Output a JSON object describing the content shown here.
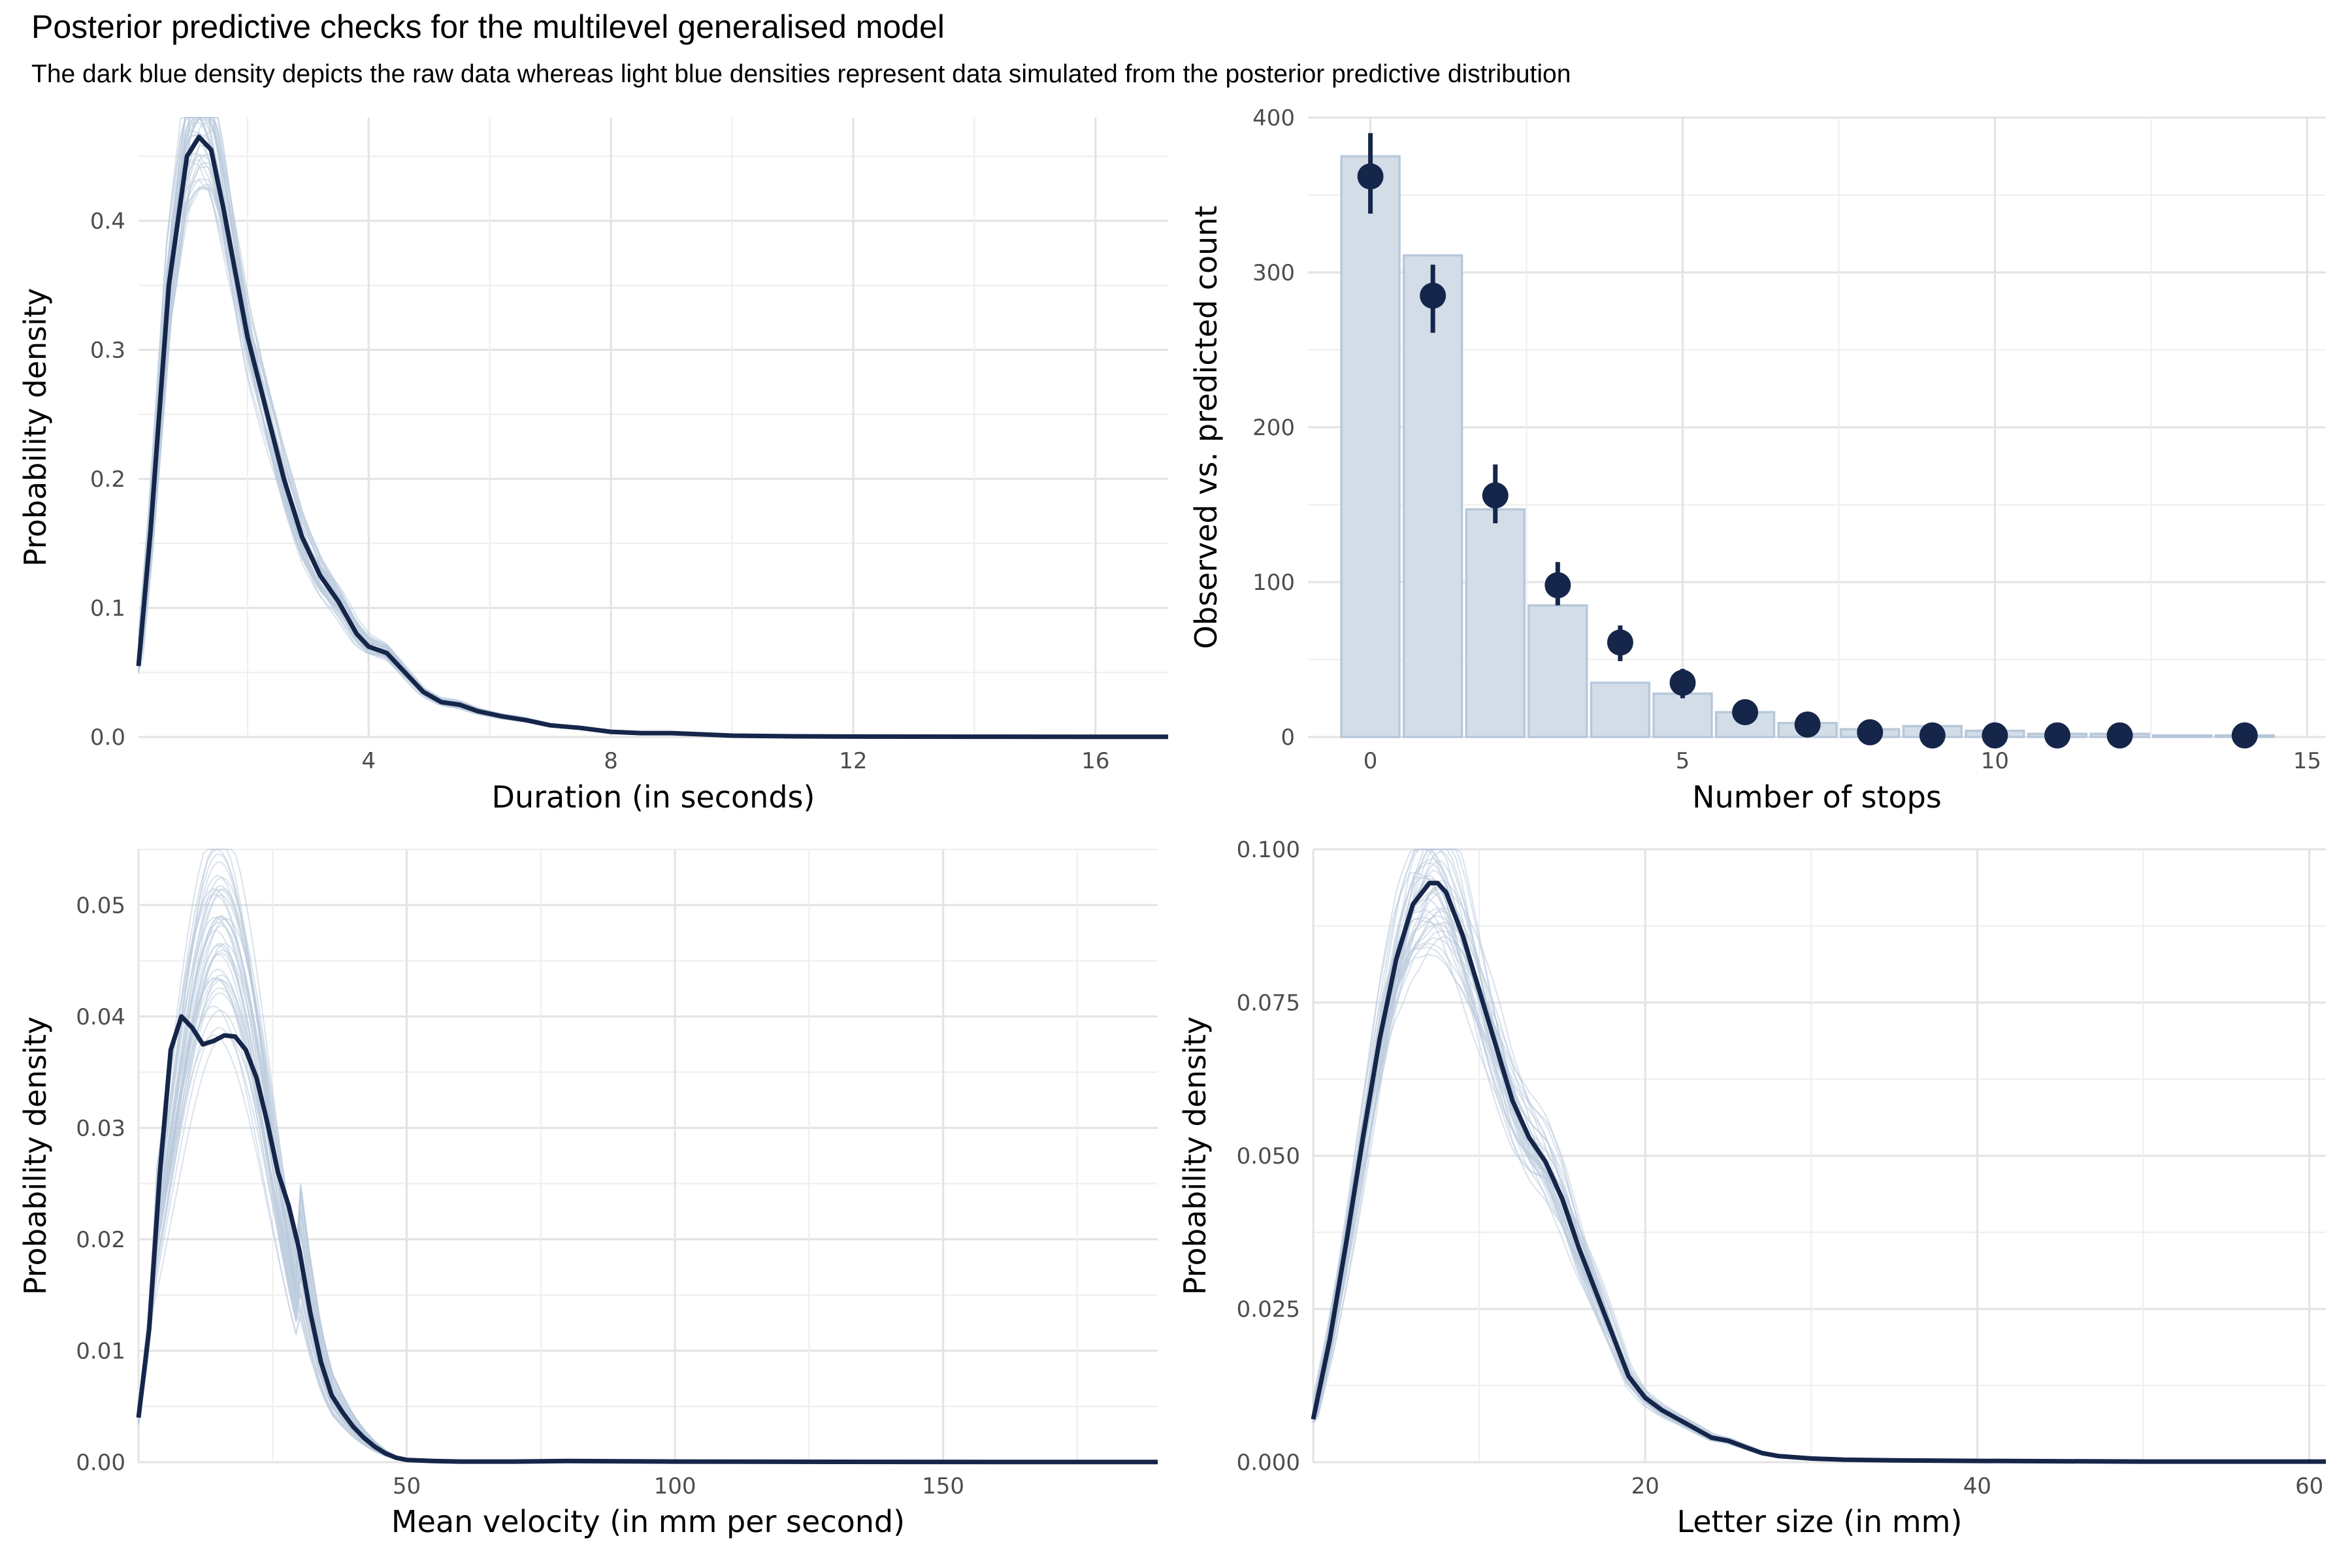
{
  "title": "Posterior predictive checks for the multilevel generalised model",
  "subtitle": "The dark blue density depicts the raw data whereas light blue densities represent data simulated from the posterior predictive distribution",
  "colors": {
    "observed": "#15264a",
    "replicated": "#b9cadd",
    "bar_fill": "#d3dde8",
    "bar_stroke": "#b7c8da",
    "grid": "#e4e4e4"
  },
  "chart_data": [
    {
      "id": "duration",
      "type": "line",
      "xlabel": "Duration (in seconds)",
      "ylabel": "Probability density",
      "xlim": [
        0.2,
        17.2
      ],
      "ylim": [
        0,
        0.48
      ],
      "x_ticks": [
        4,
        8,
        12,
        16
      ],
      "y_ticks": [
        0.0,
        0.1,
        0.2,
        0.3,
        0.4
      ],
      "y_tick_labels": [
        "0.0",
        "0.1",
        "0.2",
        "0.3",
        "0.4"
      ],
      "series": [
        {
          "role": "observed",
          "x": [
            0.2,
            0.4,
            0.7,
            1.0,
            1.2,
            1.4,
            1.6,
            1.8,
            2.0,
            2.3,
            2.6,
            2.9,
            3.2,
            3.5,
            3.8,
            4.0,
            4.3,
            4.6,
            4.9,
            5.2,
            5.5,
            5.8,
            6.2,
            6.6,
            7.0,
            7.5,
            8.0,
            8.5,
            9.0,
            9.5,
            10.0,
            11.0,
            12.0,
            14.0,
            17.2
          ],
          "y": [
            0.055,
            0.16,
            0.35,
            0.45,
            0.465,
            0.455,
            0.41,
            0.36,
            0.31,
            0.255,
            0.2,
            0.155,
            0.125,
            0.105,
            0.08,
            0.07,
            0.065,
            0.05,
            0.035,
            0.027,
            0.025,
            0.02,
            0.016,
            0.013,
            0.009,
            0.007,
            0.004,
            0.003,
            0.003,
            0.002,
            0.001,
            0.0005,
            0.0003,
            0.0002,
            0.0001
          ]
        }
      ]
    },
    {
      "id": "stops",
      "type": "bar",
      "xlabel": "Number of stops",
      "ylabel": "Observed vs. predicted count",
      "xlim": [
        -1.0,
        15.3
      ],
      "ylim": [
        0,
        400
      ],
      "x_ticks": [
        0,
        5,
        10,
        15
      ],
      "y_ticks": [
        0,
        100,
        200,
        300,
        400
      ],
      "y_tick_labels": [
        "0",
        "100",
        "200",
        "300",
        "400"
      ],
      "categories": [
        0,
        1,
        2,
        3,
        4,
        5,
        6,
        7,
        8,
        9,
        10,
        11,
        12,
        13,
        14
      ],
      "observed_counts": [
        375,
        311,
        147,
        85,
        35,
        28,
        16,
        9,
        5,
        7,
        4,
        2,
        2,
        1,
        1
      ],
      "predicted": [
        {
          "x": 0,
          "mid": 362,
          "low": 338,
          "high": 390
        },
        {
          "x": 1,
          "mid": 285,
          "low": 261,
          "high": 305
        },
        {
          "x": 2,
          "mid": 156,
          "low": 138,
          "high": 176
        },
        {
          "x": 3,
          "mid": 98,
          "low": 85,
          "high": 113
        },
        {
          "x": 4,
          "mid": 61,
          "low": 49,
          "high": 72
        },
        {
          "x": 5,
          "mid": 35,
          "low": 25,
          "high": 44
        },
        {
          "x": 6,
          "mid": 16,
          "low": 11,
          "high": 21
        },
        {
          "x": 7,
          "mid": 8,
          "low": 5,
          "high": 11
        },
        {
          "x": 8,
          "mid": 3,
          "low": 1,
          "high": 5
        },
        {
          "x": 9,
          "mid": 1,
          "low": 0,
          "high": 3
        },
        {
          "x": 10,
          "mid": 1,
          "low": 0,
          "high": 2
        },
        {
          "x": 11,
          "mid": 1,
          "low": 0,
          "high": 2
        },
        {
          "x": 12,
          "mid": 1,
          "low": 0,
          "high": 2
        },
        {
          "x": 14,
          "mid": 1,
          "low": 0,
          "high": 2
        }
      ]
    },
    {
      "id": "velocity",
      "type": "line",
      "xlabel": "Mean velocity (in mm per second)",
      "ylabel": "Probability density",
      "xlim": [
        0,
        190
      ],
      "ylim": [
        0,
        0.055
      ],
      "x_ticks": [
        50,
        100,
        150
      ],
      "y_ticks": [
        0.0,
        0.01,
        0.02,
        0.03,
        0.04,
        0.05
      ],
      "y_tick_labels": [
        "0.00",
        "0.01",
        "0.02",
        "0.03",
        "0.04",
        "0.05"
      ],
      "series": [
        {
          "role": "observed",
          "x": [
            0,
            2,
            4,
            6,
            8,
            10,
            12,
            14,
            16,
            18,
            20,
            22,
            24,
            26,
            28,
            30,
            32,
            34,
            36,
            38,
            40,
            42,
            44,
            46,
            48,
            50,
            55,
            60,
            70,
            80,
            100,
            130,
            160,
            190
          ],
          "y": [
            0.004,
            0.012,
            0.026,
            0.037,
            0.04,
            0.039,
            0.0375,
            0.0378,
            0.0383,
            0.0382,
            0.037,
            0.0345,
            0.0305,
            0.026,
            0.023,
            0.019,
            0.0135,
            0.009,
            0.006,
            0.0045,
            0.0032,
            0.0022,
            0.0014,
            0.0008,
            0.0004,
            0.0002,
            0.0001,
            5e-05,
            5e-05,
            0.0001,
            5e-05,
            3e-05,
            2e-05,
            1e-05
          ]
        }
      ]
    },
    {
      "id": "letter_size",
      "type": "line",
      "xlabel": "Letter size (in mm)",
      "ylabel": "Probability density",
      "xlim": [
        0,
        61
      ],
      "ylim": [
        0,
        0.1
      ],
      "x_ticks": [
        20,
        40,
        60
      ],
      "y_ticks": [
        0.0,
        0.025,
        0.05,
        0.075,
        0.1
      ],
      "y_tick_labels": [
        "0.000",
        "0.025",
        "0.050",
        "0.075",
        "0.100"
      ],
      "series": [
        {
          "role": "observed",
          "x": [
            0,
            1,
            2,
            3,
            4,
            5,
            6,
            7,
            7.5,
            8,
            9,
            10,
            11,
            12,
            13,
            14,
            15,
            16,
            17,
            18,
            19,
            20,
            21,
            22,
            23,
            24,
            25,
            26,
            27,
            28,
            29,
            30,
            32,
            35,
            40,
            50,
            61
          ],
          "y": [
            0.007,
            0.02,
            0.036,
            0.053,
            0.069,
            0.082,
            0.091,
            0.0945,
            0.0945,
            0.093,
            0.086,
            0.077,
            0.068,
            0.059,
            0.053,
            0.049,
            0.043,
            0.035,
            0.028,
            0.021,
            0.014,
            0.0105,
            0.0085,
            0.007,
            0.0055,
            0.004,
            0.0035,
            0.0025,
            0.0015,
            0.001,
            0.0008,
            0.0006,
            0.0004,
            0.0003,
            0.0002,
            0.0001,
            0.0001
          ]
        }
      ]
    }
  ]
}
